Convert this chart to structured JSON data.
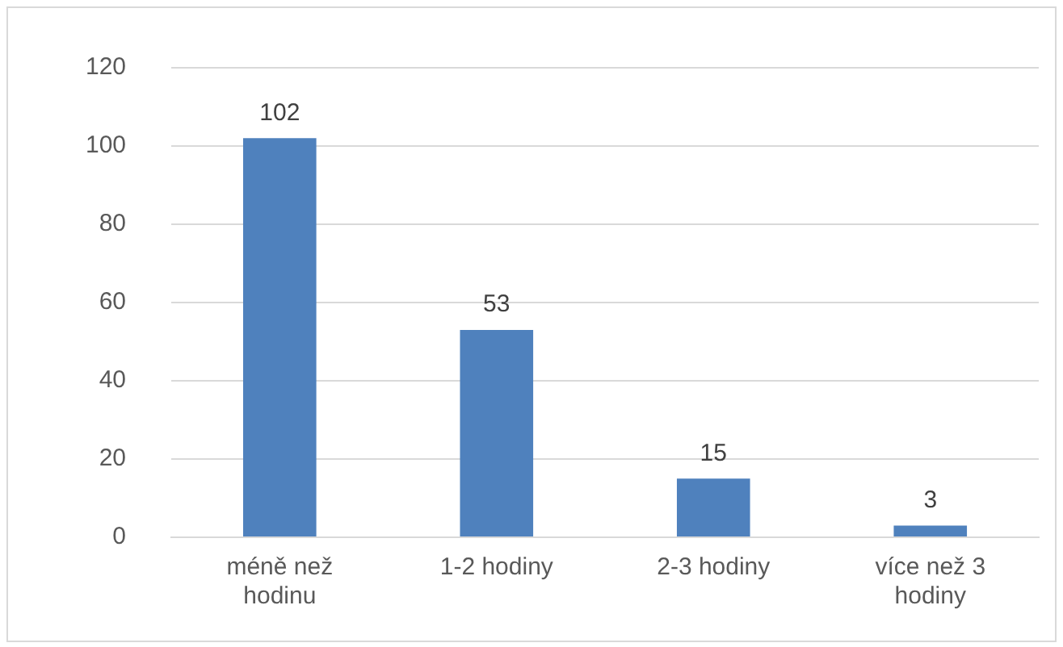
{
  "chart_data": {
    "type": "bar",
    "categories": [
      "méně než hodinu",
      "1-2 hodiny",
      "2-3 hodiny",
      "více než 3 hodiny"
    ],
    "values": [
      102,
      53,
      15,
      3
    ],
    "color": "#4f81bd",
    "ylim": [
      0,
      120
    ],
    "yticks": [
      0,
      20,
      40,
      60,
      80,
      100,
      120
    ],
    "grid": "y",
    "data_labels": true
  }
}
